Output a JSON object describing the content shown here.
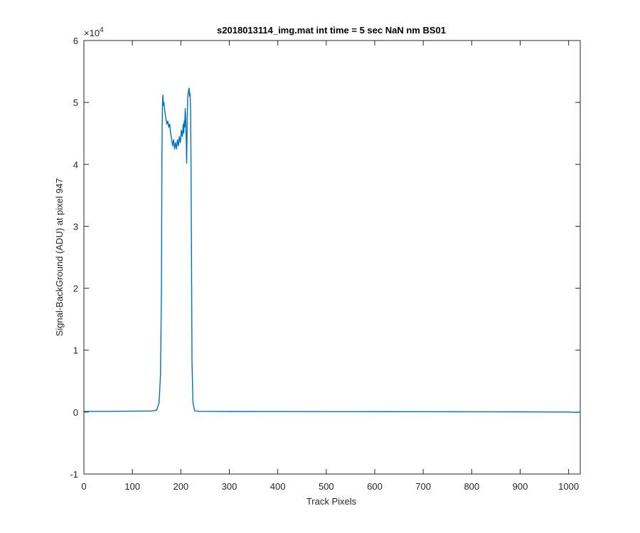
{
  "chart_data": {
    "type": "line",
    "title": "s2018013114_img.mat int time = 5 sec  NaN nm BS01",
    "xlabel": "Track Pixels",
    "ylabel": "Signal-BackGround (ADU) at pixel 947",
    "xlim": [
      0,
      1024
    ],
    "ylim": [
      -10000,
      60000
    ],
    "x_ticks": [
      0,
      100,
      200,
      300,
      400,
      500,
      600,
      700,
      800,
      900,
      1000
    ],
    "y_ticks": [
      -1,
      0,
      1,
      2,
      3,
      4,
      5,
      6
    ],
    "y_exponent_label": "×10",
    "y_exponent_power": "4",
    "grid": false,
    "line_color": "#0072bd",
    "axis_color": "#262626",
    "series": [
      {
        "x": [
          0,
          50,
          100,
          140,
          150,
          155,
          158,
          160,
          161,
          162,
          163,
          164,
          165,
          167,
          169,
          171,
          173,
          175,
          177,
          179,
          181,
          183,
          185,
          187,
          189,
          191,
          193,
          195,
          197,
          199,
          201,
          203,
          205,
          206,
          207,
          208,
          209,
          210,
          211,
          212,
          213,
          214,
          215,
          216,
          217,
          218,
          219,
          220,
          221,
          222,
          223,
          225,
          228,
          232,
          240,
          300,
          400,
          500,
          600,
          700,
          800,
          900,
          1000,
          1015,
          1024
        ],
        "y": [
          100,
          120,
          150,
          180,
          300,
          1500,
          6000,
          20000,
          42000,
          49500,
          51200,
          49500,
          50000,
          48500,
          47500,
          46500,
          47000,
          46000,
          46500,
          45000,
          44000,
          43000,
          44000,
          42500,
          43500,
          42500,
          44000,
          43000,
          44500,
          43500,
          45500,
          44500,
          46500,
          45000,
          47000,
          46000,
          49000,
          47500,
          44000,
          40200,
          46000,
          50500,
          51500,
          52000,
          52300,
          51000,
          51500,
          49000,
          40000,
          25000,
          8000,
          1500,
          300,
          150,
          120,
          100,
          90,
          80,
          70,
          60,
          50,
          40,
          0,
          -50,
          0
        ]
      }
    ]
  }
}
